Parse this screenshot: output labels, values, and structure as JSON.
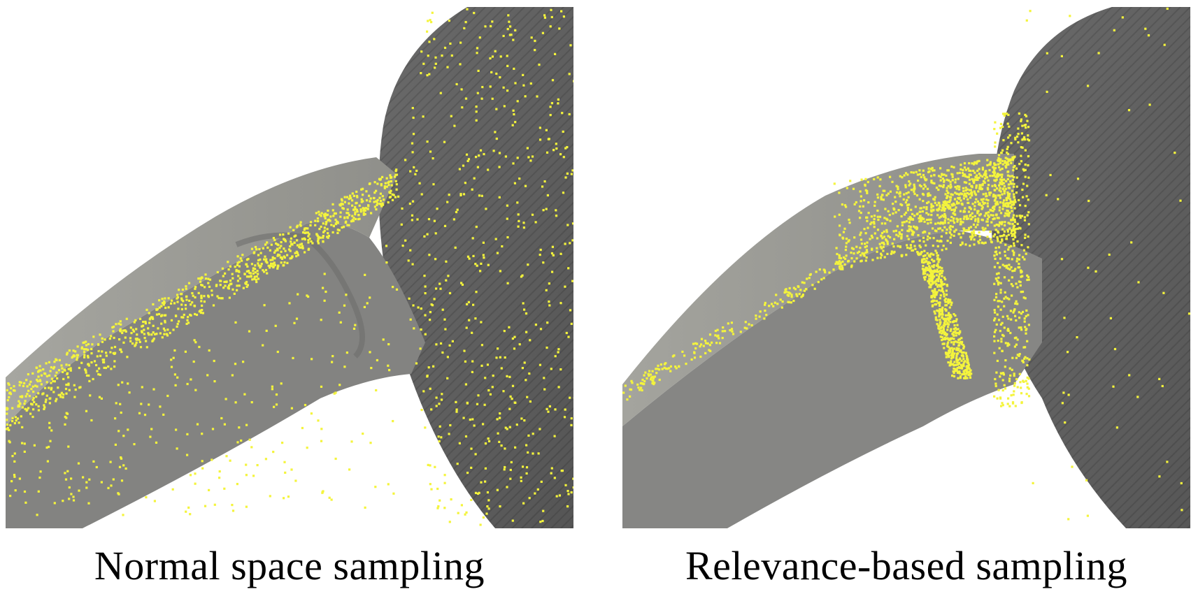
{
  "figure": {
    "panels": [
      {
        "caption": "Normal space sampling"
      },
      {
        "caption": "Relevance-based sampling"
      }
    ]
  },
  "colors": {
    "background": "#ffffff",
    "disk_surface": "#5f5f5f",
    "arm_top_surface": "#9a9a94",
    "arm_side_surface": "#828280",
    "sample_points": "#f4f43c"
  }
}
